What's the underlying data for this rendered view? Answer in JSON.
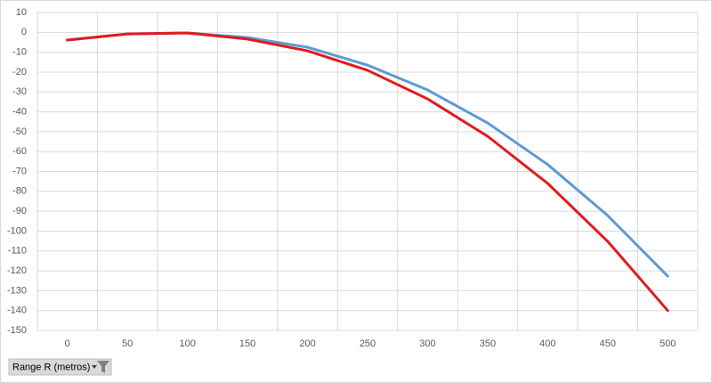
{
  "chart_data": {
    "type": "line",
    "categories": [
      "0",
      "50",
      "100",
      "150",
      "200",
      "250",
      "300",
      "350",
      "400",
      "450",
      "500"
    ],
    "series": [
      {
        "color": "#5b9bd5",
        "values": [
          -3.9,
          -0.8,
          -0.3,
          -2.6,
          -7.5,
          -16.5,
          -29,
          -45.6,
          -66.5,
          -92.2,
          -122.7
        ]
      },
      {
        "color": "#e31a1c",
        "values": [
          -3.9,
          -0.8,
          -0.3,
          -3.4,
          -9.3,
          -19.1,
          -33.5,
          -52.3,
          -76,
          -105.2,
          -140
        ]
      }
    ],
    "ylim": [
      -150,
      10
    ],
    "yticks": [
      -150,
      -140,
      -130,
      -120,
      -110,
      -100,
      -90,
      -80,
      -70,
      -60,
      -50,
      -40,
      -30,
      -20,
      -10,
      0,
      10
    ],
    "grid": true,
    "field_button": "Range R (metros)"
  }
}
